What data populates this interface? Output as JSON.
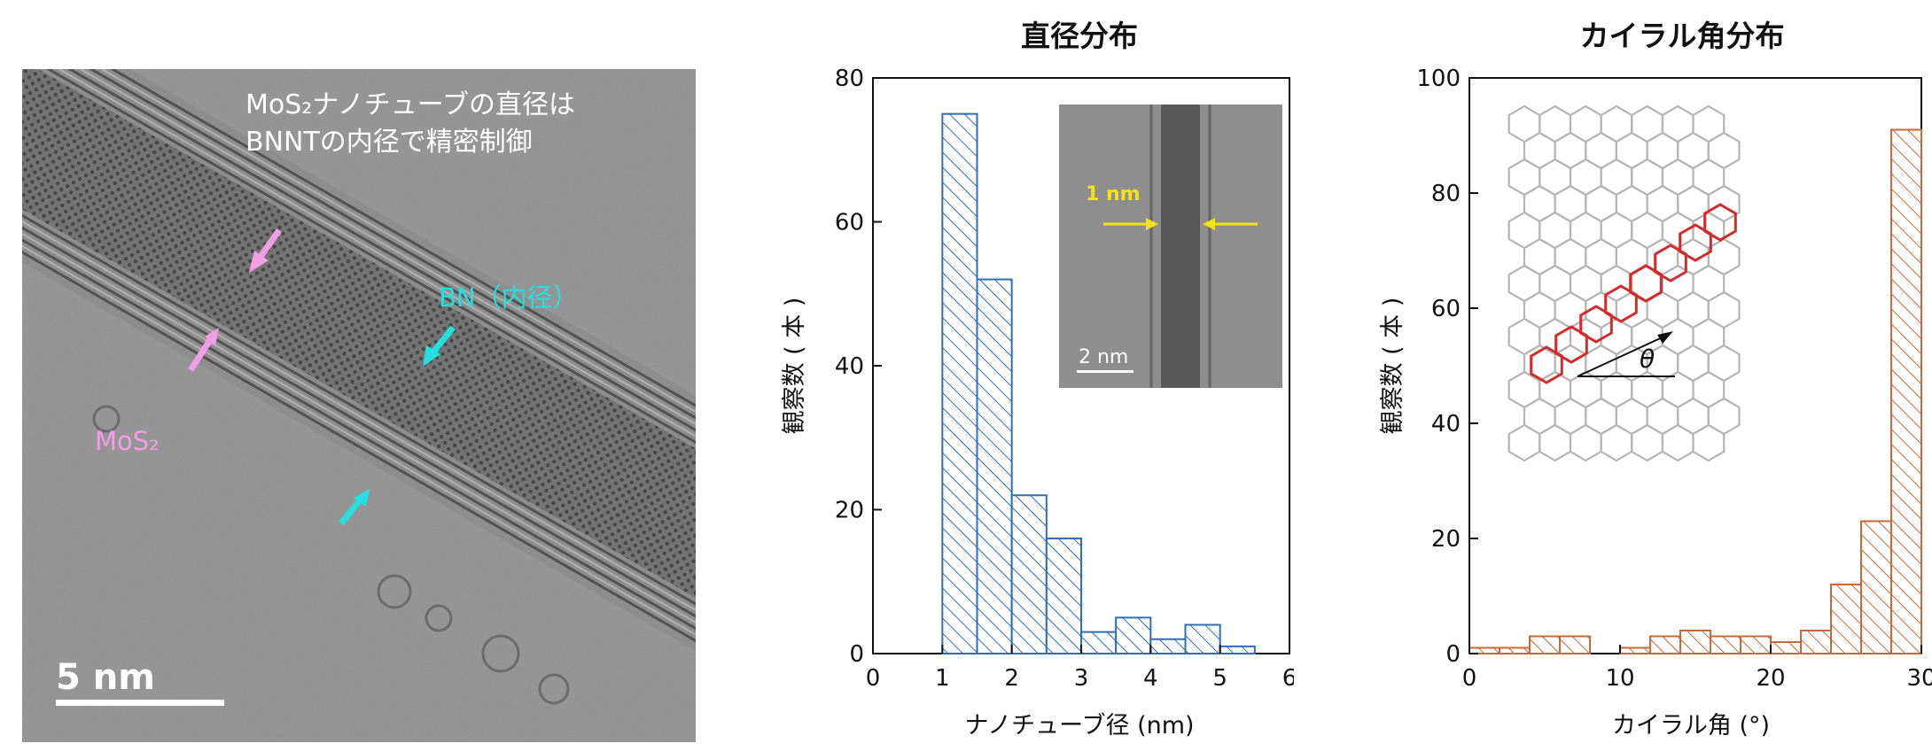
{
  "tem_panel": {
    "caption_line1": "MoS₂ナノチューブの直径は",
    "caption_line2": "BNNTの内径で精密制御",
    "label_bn": "BN（内径）",
    "label_mos2": "MoS₂",
    "scalebar": "5 nm",
    "colors": {
      "mos2": "#f29ee6",
      "bn": "#22e0e0"
    }
  },
  "chart_data": [
    {
      "type": "bar",
      "title": "直径分布",
      "xlabel": "ナノチューブ径 (nm)",
      "ylabel": "観察数 ( 本 )",
      "xlim": [
        0,
        6
      ],
      "ylim": [
        0,
        80
      ],
      "xticks": [
        0,
        1,
        2,
        3,
        4,
        5,
        6
      ],
      "yticks": [
        0,
        20,
        40,
        60,
        80
      ],
      "bin_width": 0.5,
      "bin_starts": [
        1.0,
        1.5,
        2.0,
        2.5,
        3.0,
        3.5,
        4.0,
        4.5,
        5.0
      ],
      "values": [
        75,
        52,
        22,
        16,
        3,
        5,
        2,
        4,
        1
      ],
      "color": "#2f6db5",
      "inset": {
        "label_top": "1 nm",
        "scalebar": "2 nm",
        "arrow_color": "#f2e21a"
      }
    },
    {
      "type": "bar",
      "title": "カイラル角分布",
      "xlabel": "カイラル角 (°)",
      "ylabel": "観察数 ( 本 )",
      "xlim": [
        0,
        30
      ],
      "ylim": [
        0,
        100
      ],
      "xticks": [
        0,
        10,
        20,
        30
      ],
      "yticks": [
        0,
        20,
        40,
        60,
        80,
        100
      ],
      "bin_width": 2,
      "bin_starts": [
        0,
        2,
        4,
        6,
        8,
        10,
        12,
        14,
        16,
        18,
        20,
        22,
        24,
        26,
        28
      ],
      "values": [
        1,
        1,
        3,
        3,
        0,
        1,
        3,
        4,
        3,
        3,
        2,
        4,
        12,
        23,
        91
      ],
      "color": "#c8693a",
      "inset": {
        "angle_symbol": "θ",
        "chain_color": "#d42a2a"
      }
    }
  ]
}
